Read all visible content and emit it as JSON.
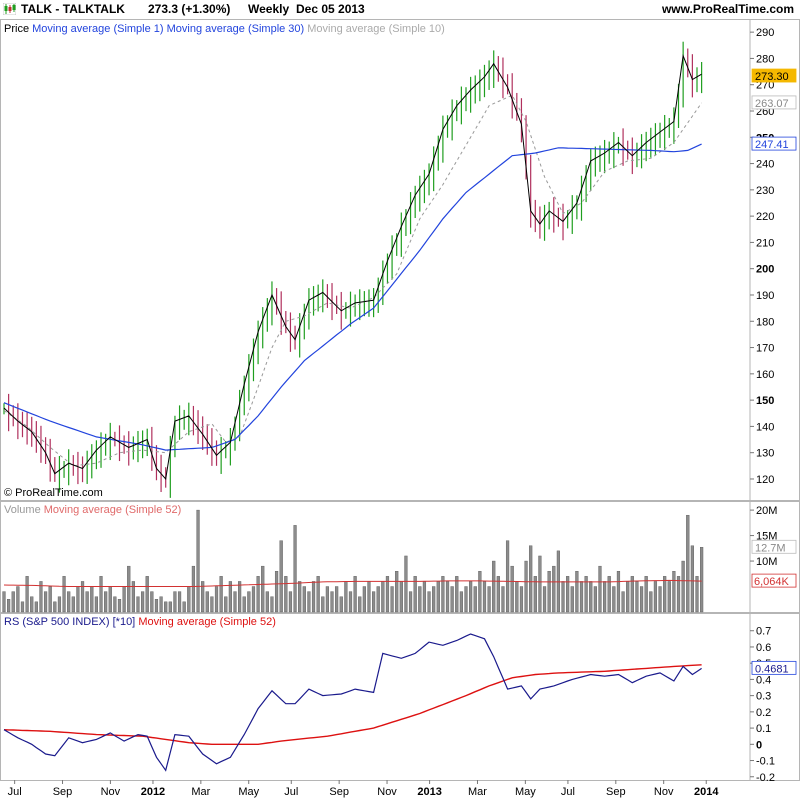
{
  "header": {
    "symbol": "TALK - TALKTALK",
    "quote": "273.3 (+1.30%)",
    "period": "Weekly",
    "date": "Dec 05 2013",
    "site": "www.ProRealTime.com",
    "copyright": "© ProRealTime.com"
  },
  "colors": {
    "up_bar": "#1f9e1f",
    "down_bar": "#b0305d",
    "price_line": "#000000",
    "ma30": "#2244dd",
    "ma10": "#999999",
    "volume_bar": "#8c8c8c",
    "volume_ma": "#d23232",
    "rs_line": "#1a1a8c",
    "rs_ma": "#dd1111",
    "last_price_bg": "#f5b800"
  },
  "chart_data": [
    {
      "type": "line",
      "panel": "price",
      "legend": {
        "prefix": "Price",
        "items": [
          "Moving average (Simple 1)",
          "Moving average (Simple 30)",
          "Moving average (Simple 10)"
        ]
      },
      "ylim": [
        112,
        295
      ],
      "yticks": [
        "120",
        "130",
        "140",
        "150",
        "160",
        "170",
        "180",
        "190",
        "200",
        "210",
        "220",
        "230",
        "240",
        "250",
        "260",
        "270",
        "280",
        "290"
      ],
      "bold_ticks": [
        "150",
        "200",
        "250"
      ],
      "last_labels": {
        "price": "273.30",
        "ma10": "263.07",
        "ma30": "247.41"
      },
      "anchors": {
        "price": [
          [
            0,
            147
          ],
          [
            3,
            142
          ],
          [
            6,
            138
          ],
          [
            9,
            130
          ],
          [
            11,
            122
          ],
          [
            14,
            126
          ],
          [
            17,
            124
          ],
          [
            20,
            131
          ],
          [
            23,
            136
          ],
          [
            27,
            132
          ],
          [
            31,
            135
          ],
          [
            33,
            124
          ],
          [
            35,
            120
          ],
          [
            37,
            142
          ],
          [
            40,
            144
          ],
          [
            43,
            137
          ],
          [
            46,
            129
          ],
          [
            49,
            134
          ],
          [
            52,
            156
          ],
          [
            55,
            176
          ],
          [
            58,
            190
          ],
          [
            61,
            178
          ],
          [
            63,
            173
          ],
          [
            66,
            188
          ],
          [
            69,
            191
          ],
          [
            73,
            184
          ],
          [
            76,
            187
          ],
          [
            80,
            188
          ],
          [
            83,
            203
          ],
          [
            86,
            216
          ],
          [
            89,
            228
          ],
          [
            92,
            236
          ],
          [
            95,
            253
          ],
          [
            98,
            262
          ],
          [
            101,
            268
          ],
          [
            104,
            273
          ],
          [
            106,
            278
          ],
          [
            109,
            269
          ],
          [
            112,
            255
          ],
          [
            114,
            222
          ],
          [
            116,
            217
          ],
          [
            118,
            222
          ],
          [
            121,
            218
          ],
          [
            124,
            225
          ],
          [
            127,
            241
          ],
          [
            130,
            244
          ],
          [
            133,
            248
          ],
          [
            136,
            243
          ],
          [
            139,
            248
          ],
          [
            142,
            252
          ],
          [
            145,
            256
          ],
          [
            147,
            281
          ],
          [
            149,
            272
          ],
          [
            151,
            274
          ]
        ],
        "ma30": [
          [
            0,
            149
          ],
          [
            10,
            142
          ],
          [
            20,
            136
          ],
          [
            30,
            133
          ],
          [
            35,
            131
          ],
          [
            45,
            132
          ],
          [
            50,
            135
          ],
          [
            55,
            144
          ],
          [
            60,
            155
          ],
          [
            65,
            165
          ],
          [
            70,
            172
          ],
          [
            75,
            179
          ],
          [
            80,
            185
          ],
          [
            85,
            196
          ],
          [
            90,
            207
          ],
          [
            95,
            219
          ],
          [
            100,
            229
          ],
          [
            105,
            236
          ],
          [
            110,
            243
          ],
          [
            115,
            244
          ],
          [
            120,
            246
          ],
          [
            130,
            245.5
          ],
          [
            140,
            245
          ],
          [
            145,
            244.5
          ],
          [
            148,
            245
          ],
          [
            151,
            247.41
          ]
        ],
        "ma10": [
          [
            0,
            146
          ],
          [
            5,
            140
          ],
          [
            10,
            132
          ],
          [
            15,
            125
          ],
          [
            20,
            126
          ],
          [
            25,
            130
          ],
          [
            30,
            131
          ],
          [
            35,
            130
          ],
          [
            40,
            138
          ],
          [
            45,
            141
          ],
          [
            48,
            134
          ],
          [
            51,
            136
          ],
          [
            55,
            155
          ],
          [
            58,
            170
          ],
          [
            61,
            180
          ],
          [
            65,
            182
          ],
          [
            70,
            187
          ],
          [
            75,
            185
          ],
          [
            80,
            189
          ],
          [
            85,
            198
          ],
          [
            90,
            219
          ],
          [
            95,
            232
          ],
          [
            100,
            247
          ],
          [
            105,
            262
          ],
          [
            110,
            266
          ],
          [
            113,
            256
          ],
          [
            117,
            235
          ],
          [
            121,
            221
          ],
          [
            125,
            225
          ],
          [
            130,
            237
          ],
          [
            135,
            241
          ],
          [
            140,
            242
          ],
          [
            145,
            248
          ],
          [
            151,
            263.07
          ]
        ]
      }
    },
    {
      "type": "bar",
      "panel": "volume",
      "legend": {
        "prefix": "Volume",
        "items": [
          "Moving average (Simple 52)"
        ]
      },
      "ylim": [
        0,
        21000000
      ],
      "yticks": [
        "10M",
        "15M",
        "20M"
      ],
      "last_labels": {
        "volume": "12.7M",
        "ma52": "6,064K"
      },
      "values_m": [
        4,
        2.5,
        4,
        5,
        2,
        7,
        3,
        2,
        6,
        4,
        5,
        2,
        3,
        7,
        4,
        3,
        5,
        6,
        4,
        5,
        3,
        7,
        4,
        5,
        3,
        2.5,
        5,
        9,
        6,
        3,
        4,
        7,
        4,
        2.5,
        3,
        2,
        2,
        4,
        4,
        2,
        5,
        9,
        20,
        6,
        4,
        3,
        5,
        7,
        3,
        6,
        4,
        6,
        3,
        4,
        5,
        7,
        9,
        4,
        3,
        8,
        14,
        7,
        4,
        17,
        6,
        5,
        4,
        6,
        7,
        3,
        5,
        4,
        5,
        3,
        6,
        4,
        7,
        3,
        5,
        6,
        4,
        5,
        6,
        7,
        5,
        8,
        6,
        11,
        4,
        7,
        5,
        6,
        4,
        5,
        6,
        7,
        6,
        5,
        7,
        4,
        5,
        6,
        5,
        8,
        6,
        5,
        10,
        7,
        5,
        14,
        9,
        6,
        5,
        10,
        13,
        7,
        11,
        5,
        8,
        9,
        12,
        6,
        7,
        5,
        8,
        6,
        7,
        6,
        5,
        9,
        6,
        7,
        5,
        8,
        4,
        6,
        7,
        6,
        5,
        7,
        4,
        6,
        5,
        7,
        6,
        8,
        7,
        10,
        19,
        13,
        7,
        12.7
      ],
      "ma_values_m": [
        5.3,
        5.2,
        5.0,
        5.0,
        5.0,
        5.0,
        5.0,
        5.2,
        5.4,
        5.6,
        5.9,
        6.0,
        6.0,
        6.0,
        6.1,
        6.1,
        6.0,
        5.9,
        5.9,
        5.9,
        6.1,
        6.2,
        6.064
      ]
    },
    {
      "type": "line",
      "panel": "rs",
      "legend": {
        "prefix": "RS (S&P 500 INDEX) [*10]",
        "items": [
          "Moving average (Simple 52)"
        ]
      },
      "ylim": [
        -0.22,
        0.76
      ],
      "yticks": [
        "-0.2",
        "-0.1",
        "0",
        "0.1",
        "0.2",
        "0.3",
        "0.4",
        "0.5",
        "0.6",
        "0.7"
      ],
      "last_labels": {
        "rs": "0.4681"
      },
      "anchors": {
        "rs": [
          [
            0,
            0.09
          ],
          [
            3,
            0.04
          ],
          [
            6,
            0.0
          ],
          [
            9,
            -0.06
          ],
          [
            11,
            -0.07
          ],
          [
            14,
            0.04
          ],
          [
            17,
            0.01
          ],
          [
            20,
            0.03
          ],
          [
            23,
            0.07
          ],
          [
            26,
            0.02
          ],
          [
            29,
            0.06
          ],
          [
            31,
            0.05
          ],
          [
            33,
            -0.08
          ],
          [
            35,
            -0.16
          ],
          [
            37,
            0.06
          ],
          [
            40,
            0.05
          ],
          [
            43,
            -0.06
          ],
          [
            46,
            -0.12
          ],
          [
            49,
            -0.08
          ],
          [
            52,
            0.06
          ],
          [
            55,
            0.22
          ],
          [
            58,
            0.33
          ],
          [
            61,
            0.25
          ],
          [
            63,
            0.25
          ],
          [
            66,
            0.34
          ],
          [
            69,
            0.3
          ],
          [
            73,
            0.31
          ],
          [
            76,
            0.34
          ],
          [
            80,
            0.32
          ],
          [
            82,
            0.56
          ],
          [
            86,
            0.53
          ],
          [
            89,
            0.56
          ],
          [
            92,
            0.63
          ],
          [
            95,
            0.61
          ],
          [
            98,
            0.64
          ],
          [
            101,
            0.68
          ],
          [
            104,
            0.65
          ],
          [
            106,
            0.54
          ],
          [
            109,
            0.34
          ],
          [
            112,
            0.36
          ],
          [
            114,
            0.28
          ],
          [
            116,
            0.34
          ],
          [
            119,
            0.36
          ],
          [
            123,
            0.4
          ],
          [
            127,
            0.43
          ],
          [
            130,
            0.42
          ],
          [
            133,
            0.43
          ],
          [
            136,
            0.38
          ],
          [
            139,
            0.42
          ],
          [
            142,
            0.44
          ],
          [
            145,
            0.39
          ],
          [
            147,
            0.48
          ],
          [
            149,
            0.43
          ],
          [
            151,
            0.4681
          ]
        ],
        "rs_ma": [
          [
            0,
            0.09
          ],
          [
            10,
            0.08
          ],
          [
            20,
            0.06
          ],
          [
            30,
            0.05
          ],
          [
            40,
            0.01
          ],
          [
            45,
            0.0
          ],
          [
            50,
            0.0
          ],
          [
            55,
            0.0
          ],
          [
            60,
            0.02
          ],
          [
            70,
            0.05
          ],
          [
            80,
            0.1
          ],
          [
            90,
            0.19
          ],
          [
            100,
            0.3
          ],
          [
            105,
            0.36
          ],
          [
            110,
            0.41
          ],
          [
            115,
            0.43
          ],
          [
            120,
            0.44
          ],
          [
            130,
            0.45
          ],
          [
            140,
            0.47
          ],
          [
            145,
            0.48
          ],
          [
            151,
            0.49
          ]
        ]
      }
    }
  ],
  "x_axis": {
    "labels": [
      {
        "text": "Jul",
        "w": 2
      },
      {
        "text": "Sep",
        "w": 11
      },
      {
        "text": "Nov",
        "w": 20
      },
      {
        "text": "2012",
        "w": 28,
        "bold": true
      },
      {
        "text": "Mar",
        "w": 37
      },
      {
        "text": "May",
        "w": 46
      },
      {
        "text": "Jul",
        "w": 54
      },
      {
        "text": "Sep",
        "w": 63
      },
      {
        "text": "Nov",
        "w": 72
      },
      {
        "text": "2013",
        "w": 80,
        "bold": true
      },
      {
        "text": "Mar",
        "w": 89
      },
      {
        "text": "May",
        "w": 98
      },
      {
        "text": "Jul",
        "w": 106
      },
      {
        "text": "Sep",
        "w": 115
      },
      {
        "text": "Nov",
        "w": 124
      },
      {
        "text": "2014",
        "w": 132,
        "bold": true
      }
    ]
  }
}
